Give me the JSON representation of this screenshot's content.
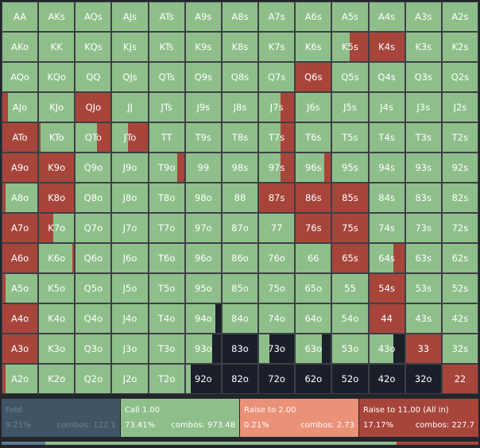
{
  "colors": {
    "fold": "#5d7a93",
    "call": "#8ebf8a",
    "raise_small": "#ea9177",
    "raise_allin": "#a8453b",
    "cell_border": "#3c4046",
    "background": "#23262b"
  },
  "grid": {
    "hands": [
      [
        "AA",
        "AKs",
        "AQs",
        "AJs",
        "ATs",
        "A9s",
        "A8s",
        "A7s",
        "A6s",
        "A5s",
        "A4s",
        "A3s",
        "A2s"
      ],
      [
        "AKo",
        "KK",
        "KQs",
        "KJs",
        "KTs",
        "K9s",
        "K8s",
        "K7s",
        "K6s",
        "K5s",
        "K4s",
        "K3s",
        "K2s"
      ],
      [
        "AQo",
        "KQo",
        "QQ",
        "QJs",
        "QTs",
        "Q9s",
        "Q8s",
        "Q7s",
        "Q6s",
        "Q5s",
        "Q4s",
        "Q3s",
        "Q2s"
      ],
      [
        "AJo",
        "KJo",
        "QJo",
        "JJ",
        "JTs",
        "J9s",
        "J8s",
        "J7s",
        "J6s",
        "J5s",
        "J4s",
        "J3s",
        "J2s"
      ],
      [
        "ATo",
        "KTo",
        "QTo",
        "JTo",
        "TT",
        "T9s",
        "T8s",
        "T7s",
        "T6s",
        "T5s",
        "T4s",
        "T3s",
        "T2s"
      ],
      [
        "A9o",
        "K9o",
        "Q9o",
        "J9o",
        "T9o",
        "99",
        "98s",
        "97s",
        "96s",
        "95s",
        "94s",
        "93s",
        "92s"
      ],
      [
        "A8o",
        "K8o",
        "Q8o",
        "J8o",
        "T8o",
        "98o",
        "88",
        "87s",
        "86s",
        "85s",
        "84s",
        "83s",
        "82s"
      ],
      [
        "A7o",
        "K7o",
        "Q7o",
        "J7o",
        "T7o",
        "97o",
        "87o",
        "77",
        "76s",
        "75s",
        "74s",
        "73s",
        "72s"
      ],
      [
        "A6o",
        "K6o",
        "Q6o",
        "J6o",
        "T6o",
        "96o",
        "86o",
        "76o",
        "66",
        "65s",
        "64s",
        "63s",
        "62s"
      ],
      [
        "A5o",
        "K5o",
        "Q5o",
        "J5o",
        "T5o",
        "95o",
        "85o",
        "75o",
        "65o",
        "55",
        "54s",
        "53s",
        "52s"
      ],
      [
        "A4o",
        "K4o",
        "Q4o",
        "J4o",
        "T4o",
        "94o",
        "84o",
        "74o",
        "64o",
        "54o",
        "44",
        "43s",
        "42s"
      ],
      [
        "A3o",
        "K3o",
        "Q3o",
        "J3o",
        "T3o",
        "93o",
        "83o",
        "73o",
        "63o",
        "53o",
        "43o",
        "33",
        "32s"
      ],
      [
        "A2o",
        "K2o",
        "Q2o",
        "J2o",
        "T2o",
        "92o",
        "82o",
        "72o",
        "62o",
        "52o",
        "42o",
        "32o",
        "22"
      ]
    ],
    "mixes": {
      "K5s": {
        "call": 0.5,
        "allin": 0.5
      },
      "K4s": {
        "allin": 1
      },
      "Q6s": {
        "allin": 1
      },
      "AJo": {
        "allin": 0.15,
        "call": 0.85
      },
      "QJo": {
        "allin": 1
      },
      "J7s": {
        "call": 0.6,
        "allin": 0.4
      },
      "ATo": {
        "allin": 1
      },
      "KTo": {
        "allin": 0.05,
        "call": 0.95
      },
      "QTo": {
        "call": 0.6,
        "allin": 0.4
      },
      "JTo": {
        "call": 0.45,
        "allin": 0.55
      },
      "T7s": {
        "call": 0.6,
        "allin": 0.4
      },
      "A9o": {
        "allin": 1
      },
      "K9o": {
        "allin": 1
      },
      "T9o": {
        "call": 0.8,
        "allin": 0.2
      },
      "97s": {
        "call": 0.6,
        "allin": 0.4
      },
      "96s": {
        "call": 0.8,
        "allin": 0.2
      },
      "A8o": {
        "allin": 0.1,
        "call": 0.9
      },
      "K8o": {
        "allin": 1
      },
      "87s": {
        "allin": 1
      },
      "86s": {
        "allin": 1
      },
      "85s": {
        "allin": 1
      },
      "A7o": {
        "allin": 1
      },
      "K7o": {
        "allin": 0.4,
        "call": 0.6
      },
      "76s": {
        "allin": 1
      },
      "75s": {
        "allin": 1
      },
      "A6o": {
        "allin": 1
      },
      "K6o": {
        "call": 0.95,
        "allin": 0.05
      },
      "65s": {
        "allin": 1
      },
      "64s": {
        "call": 0.7,
        "allin": 0.3
      },
      "A5o": {
        "allin": 0.1,
        "call": 0.9
      },
      "54s": {
        "allin": 1
      },
      "A4o": {
        "allin": 1
      },
      "94o": {
        "call": 0.85,
        "fold": 0.15
      },
      "44": {
        "allin": 1
      },
      "A3o": {
        "allin": 1
      },
      "93o": {
        "call": 0.75,
        "fold": 0.25
      },
      "83o": {
        "fold": 1
      },
      "73o": {
        "call": 0.3,
        "fold": 0.7
      },
      "63o": {
        "call": 0.75,
        "fold": 0.25
      },
      "43o": {
        "call": 0.7,
        "fold": 0.3
      },
      "33": {
        "allin": 1
      },
      "A2o": {
        "allin": 0.1,
        "call": 0.9
      },
      "92o": {
        "call": 0.15,
        "fold": 0.85
      },
      "82o": {
        "fold": 1
      },
      "72o": {
        "fold": 1
      },
      "62o": {
        "fold": 1
      },
      "52o": {
        "fold": 1
      },
      "42o": {
        "fold": 1
      },
      "32o": {
        "fold": 1
      },
      "22": {
        "allin": 1
      }
    }
  },
  "legend": {
    "fold": {
      "label": "Fold",
      "pct": "9.21%",
      "combos": "combos: 122.1"
    },
    "call": {
      "label": "Call 1.00",
      "pct": "73.41%",
      "combos": "combos: 973.48"
    },
    "raise_small": {
      "label": "Raise to 2.00",
      "pct": "0.21%",
      "combos": "combos: 2.73"
    },
    "raise_allin": {
      "label": "Raise to 11.00 (All in)",
      "pct": "17.17%",
      "combos": "combos: 227.7"
    }
  },
  "freq_bar": {
    "fold": 0.0921,
    "call": 0.7341,
    "raise_small": 0.0021,
    "allin": 0.1717
  }
}
